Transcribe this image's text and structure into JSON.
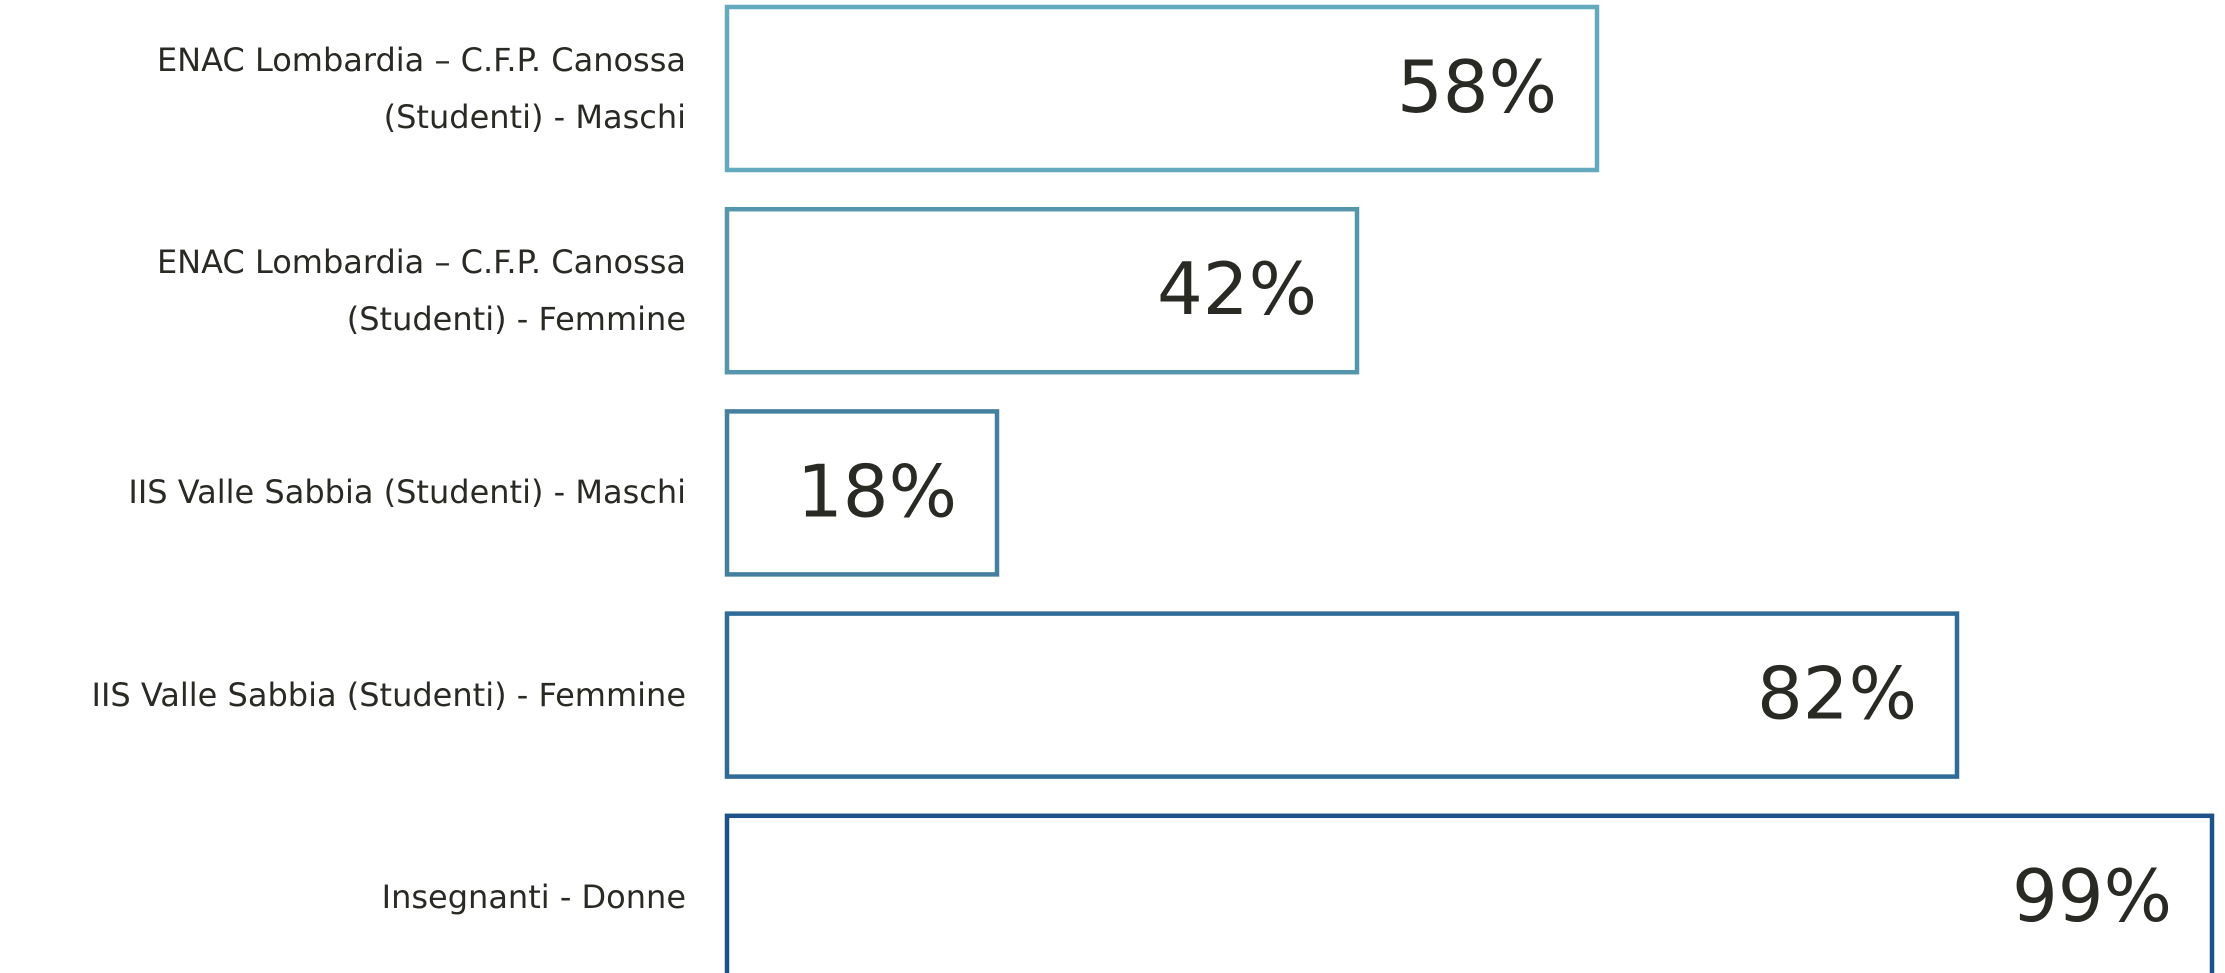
{
  "chart_data": {
    "type": "bar",
    "orientation": "horizontal",
    "categories": [
      "ENAC Lombardia – C.F.P. Canossa (Studenti) - Maschi",
      "ENAC Lombardia – C.F.P. Canossa (Studenti) - Femmine",
      "IIS Valle Sabbia (Studenti) - Maschi",
      "IIS Valle Sabbia (Studenti) - Femmine",
      "Insegnanti - Donne"
    ],
    "values": [
      58,
      42,
      18,
      82,
      99
    ],
    "value_labels": [
      "58%",
      "42%",
      "18%",
      "82%",
      "99%"
    ],
    "colors": [
      "#64aabf",
      "#5596ad",
      "#447f9f",
      "#2f6b96",
      "#1d5288"
    ]
  }
}
